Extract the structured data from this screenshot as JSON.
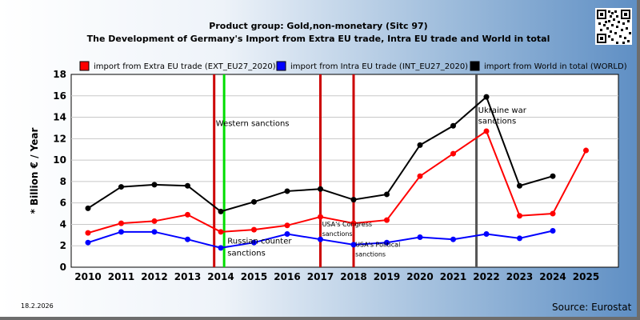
{
  "header": {
    "title_line1": "Product group: Gold,non-monetary (Sitc 97)",
    "title_line2": "The Development of Germany's Import from Extra EU trade, Intra EU trade and World in total"
  },
  "footer": {
    "date": "18.2.2026",
    "source": "Source: Eurostat"
  },
  "qr_icon": "qr-code-icon",
  "chart_data": {
    "type": "line",
    "title": "The Development of Germany's Import from Extra EU trade, Intra EU trade and World in total",
    "ylabel": "* Billion € / Year",
    "xlabel": "",
    "ylim": [
      0,
      18
    ],
    "yticks": [
      0,
      2,
      4,
      6,
      8,
      10,
      12,
      14,
      16,
      18
    ],
    "categories": [
      "2010",
      "2011",
      "2012",
      "2013",
      "2014",
      "2015",
      "2016",
      "2017",
      "2018",
      "2019",
      "2020",
      "2021",
      "2022",
      "2023",
      "2024",
      "2025"
    ],
    "grid": true,
    "legend_position": "top",
    "series": [
      {
        "name": "import from Extra EU trade (EXT_EU27_2020)",
        "color": "#ff0000",
        "values": [
          3.2,
          4.1,
          4.3,
          4.9,
          3.3,
          3.5,
          3.9,
          4.7,
          4.1,
          4.4,
          8.5,
          10.6,
          12.7,
          4.8,
          5.0,
          10.9
        ]
      },
      {
        "name": "import from Intra EU trade (INT_EU27_2020)",
        "color": "#0000ff",
        "values": [
          2.3,
          3.3,
          3.3,
          2.6,
          1.8,
          2.3,
          3.1,
          2.6,
          2.1,
          2.3,
          2.8,
          2.6,
          3.1,
          2.7,
          3.4,
          null
        ]
      },
      {
        "name": "import from World in total (WORLD)",
        "color": "#000000",
        "values": [
          5.5,
          7.5,
          7.7,
          7.6,
          5.2,
          6.1,
          7.1,
          7.3,
          6.3,
          6.8,
          11.4,
          13.2,
          15.9,
          7.6,
          8.5,
          null
        ]
      }
    ],
    "event_lines": [
      {
        "x": 2013.8,
        "color": "#cc0000"
      },
      {
        "x": 2014.1,
        "color": "#00dd00"
      },
      {
        "x": 2017.0,
        "color": "#cc0000"
      },
      {
        "x": 2018.0,
        "color": "#cc0000"
      },
      {
        "x": 2021.7,
        "color": "#555555"
      }
    ],
    "annotations": [
      {
        "text": "Western sanctions",
        "x": 2013.85,
        "y": 13.2,
        "size": "normal"
      },
      {
        "text": "Russian counter",
        "x": 2014.2,
        "y": 2.2,
        "size": "normal"
      },
      {
        "text": "sanctions",
        "x": 2014.2,
        "y": 1.1,
        "size": "normal"
      },
      {
        "text": "USA's Congress",
        "x": 2017.05,
        "y": 3.8,
        "size": "small"
      },
      {
        "text": "sanctions",
        "x": 2017.05,
        "y": 2.9,
        "size": "small"
      },
      {
        "text": "USA's Political",
        "x": 2018.05,
        "y": 1.9,
        "size": "small"
      },
      {
        "text": "sanctions",
        "x": 2018.05,
        "y": 1.0,
        "size": "small"
      },
      {
        "text": "Ukraine war",
        "x": 2021.75,
        "y": 14.4,
        "size": "normal"
      },
      {
        "text": "sanctions",
        "x": 2021.75,
        "y": 13.4,
        "size": "normal"
      }
    ]
  }
}
